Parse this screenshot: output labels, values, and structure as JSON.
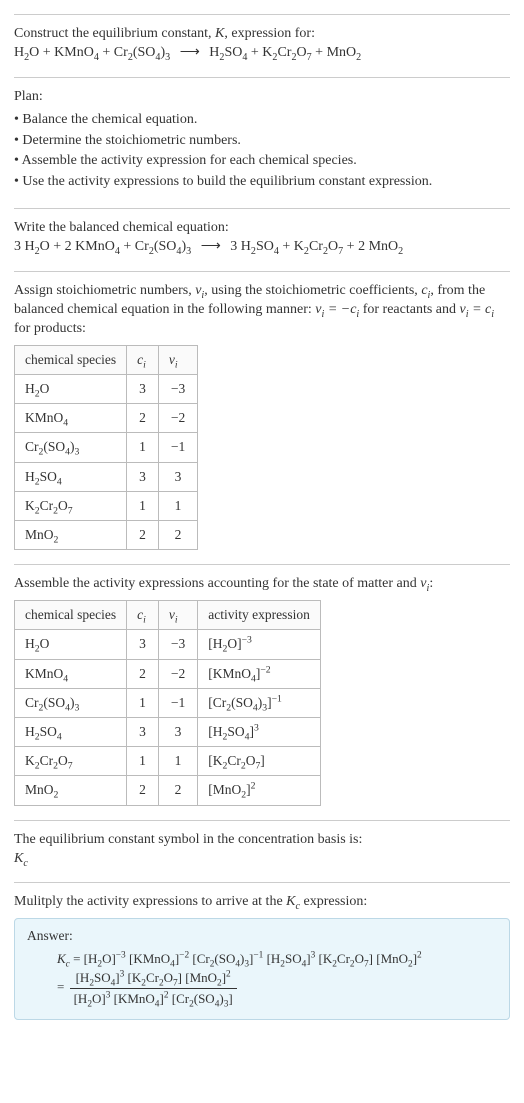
{
  "intro": {
    "line1_pre": "Construct the equilibrium constant, ",
    "line1_K": "K",
    "line1_post": ", expression for:"
  },
  "eq1": {
    "lhs": [
      {
        "s": "H",
        "sub": "2"
      },
      {
        "s": "O + KMnO"
      },
      {
        "sub": "4"
      },
      {
        "s": " + Cr"
      },
      {
        "sub": "2"
      },
      {
        "s": "(SO"
      },
      {
        "sub": "4"
      },
      {
        "s": ")"
      },
      {
        "sub": "3"
      }
    ],
    "rhs": [
      {
        "s": "H",
        "sub": "2"
      },
      {
        "s": "SO"
      },
      {
        "sub": "4"
      },
      {
        "s": " + K"
      },
      {
        "sub": "2"
      },
      {
        "s": "Cr"
      },
      {
        "sub": "2"
      },
      {
        "s": "O"
      },
      {
        "sub": "7"
      },
      {
        "s": " + MnO"
      },
      {
        "sub": "2"
      }
    ]
  },
  "plan": {
    "title": "Plan:",
    "items": [
      "• Balance the chemical equation.",
      "• Determine the stoichiometric numbers.",
      "• Assemble the activity expression for each chemical species.",
      "• Use the activity expressions to build the equilibrium constant expression."
    ]
  },
  "balanced": {
    "title": "Write the balanced chemical equation:",
    "lhs": [
      {
        "s": "3 H",
        "sub": "2"
      },
      {
        "s": "O + 2 KMnO"
      },
      {
        "sub": "4"
      },
      {
        "s": " + Cr"
      },
      {
        "sub": "2"
      },
      {
        "s": "(SO"
      },
      {
        "sub": "4"
      },
      {
        "s": ")"
      },
      {
        "sub": "3"
      }
    ],
    "rhs": [
      {
        "s": "3 H",
        "sub": "2"
      },
      {
        "s": "SO"
      },
      {
        "sub": "4"
      },
      {
        "s": " + K"
      },
      {
        "sub": "2"
      },
      {
        "s": "Cr"
      },
      {
        "sub": "2"
      },
      {
        "s": "O"
      },
      {
        "sub": "7"
      },
      {
        "s": " + 2 MnO"
      },
      {
        "sub": "2"
      }
    ]
  },
  "stoich_text": {
    "p1": "Assign stoichiometric numbers, ",
    "vi": "ν",
    "visub": "i",
    "p2": ", using the stoichiometric coefficients, ",
    "ci": "c",
    "cisub": "i",
    "p3": ", from the balanced chemical equation in the following manner: ",
    "eq1": "ν",
    "eq1sub": "i",
    "eq1b": " = −c",
    "eq1bsub": "i",
    "p4": " for reactants and ",
    "eq2": "ν",
    "eq2sub": "i",
    "eq2b": " = c",
    "eq2bsub": "i",
    "p5": " for products:"
  },
  "table1": {
    "headers": [
      "chemical species",
      "c_i",
      "ν_i"
    ],
    "rows": [
      {
        "species": [
          {
            "s": "H",
            "sub": "2"
          },
          {
            "s": "O"
          }
        ],
        "c": "3",
        "v": "−3"
      },
      {
        "species": [
          {
            "s": "KMnO",
            "sub": "4"
          }
        ],
        "c": "2",
        "v": "−2"
      },
      {
        "species": [
          {
            "s": "Cr",
            "sub": "2"
          },
          {
            "s": "(SO",
            "sub": "4"
          },
          {
            "s": ")",
            "sub": "3"
          }
        ],
        "c": "1",
        "v": "−1"
      },
      {
        "species": [
          {
            "s": "H",
            "sub": "2"
          },
          {
            "s": "SO",
            "sub": "4"
          }
        ],
        "c": "3",
        "v": "3"
      },
      {
        "species": [
          {
            "s": "K",
            "sub": "2"
          },
          {
            "s": "Cr",
            "sub": "2"
          },
          {
            "s": "O",
            "sub": "7"
          }
        ],
        "c": "1",
        "v": "1"
      },
      {
        "species": [
          {
            "s": "MnO",
            "sub": "2"
          }
        ],
        "c": "2",
        "v": "2"
      }
    ]
  },
  "assemble_text": {
    "p1": "Assemble the activity expressions accounting for the state of matter and ",
    "vi": "ν",
    "visub": "i",
    "p2": ":"
  },
  "table2": {
    "headers": [
      "chemical species",
      "c_i",
      "ν_i",
      "activity expression"
    ],
    "rows": [
      {
        "species": [
          {
            "s": "H",
            "sub": "2"
          },
          {
            "s": "O"
          }
        ],
        "c": "3",
        "v": "−3",
        "act": [
          {
            "s": "[H",
            "sub": "2"
          },
          {
            "s": "O]",
            "sup": "−3"
          }
        ]
      },
      {
        "species": [
          {
            "s": "KMnO",
            "sub": "4"
          }
        ],
        "c": "2",
        "v": "−2",
        "act": [
          {
            "s": "[KMnO",
            "sub": "4"
          },
          {
            "s": "]",
            "sup": "−2"
          }
        ]
      },
      {
        "species": [
          {
            "s": "Cr",
            "sub": "2"
          },
          {
            "s": "(SO",
            "sub": "4"
          },
          {
            "s": ")",
            "sub": "3"
          }
        ],
        "c": "1",
        "v": "−1",
        "act": [
          {
            "s": "[Cr",
            "sub": "2"
          },
          {
            "s": "(SO",
            "sub": "4"
          },
          {
            "s": ")",
            "sub": "3"
          },
          {
            "s": "]",
            "sup": "−1"
          }
        ]
      },
      {
        "species": [
          {
            "s": "H",
            "sub": "2"
          },
          {
            "s": "SO",
            "sub": "4"
          }
        ],
        "c": "3",
        "v": "3",
        "act": [
          {
            "s": "[H",
            "sub": "2"
          },
          {
            "s": "SO",
            "sub": "4"
          },
          {
            "s": "]",
            "sup": "3"
          }
        ]
      },
      {
        "species": [
          {
            "s": "K",
            "sub": "2"
          },
          {
            "s": "Cr",
            "sub": "2"
          },
          {
            "s": "O",
            "sub": "7"
          }
        ],
        "c": "1",
        "v": "1",
        "act": [
          {
            "s": "[K",
            "sub": "2"
          },
          {
            "s": "Cr",
            "sub": "2"
          },
          {
            "s": "O",
            "sub": "7"
          },
          {
            "s": "]"
          }
        ]
      },
      {
        "species": [
          {
            "s": "MnO",
            "sub": "2"
          }
        ],
        "c": "2",
        "v": "2",
        "act": [
          {
            "s": "[MnO",
            "sub": "2"
          },
          {
            "s": "]",
            "sup": "2"
          }
        ]
      }
    ]
  },
  "symbol_text": "The equilibrium constant symbol in the concentration basis is:",
  "multiply_text": {
    "p1": "Mulitply the activity expressions to arrive at the ",
    "kc": "K",
    "kcsub": "c",
    "p2": " expression:"
  },
  "answer": {
    "label": "Answer:",
    "line1": [
      {
        "s": "K",
        "sub": "c",
        "it": true
      },
      {
        "s": " = [H",
        "sub": "2"
      },
      {
        "s": "O]",
        "sup": "−3"
      },
      {
        "s": " [KMnO",
        "sub": "4"
      },
      {
        "s": "]",
        "sup": "−2"
      },
      {
        "s": " [Cr",
        "sub": "2"
      },
      {
        "s": "(SO",
        "sub": "4"
      },
      {
        "s": ")",
        "sub": "3"
      },
      {
        "s": "]",
        "sup": "−1"
      },
      {
        "s": " [H",
        "sub": "2"
      },
      {
        "s": "SO",
        "sub": "4"
      },
      {
        "s": "]",
        "sup": "3"
      },
      {
        "s": " [K",
        "sub": "2"
      },
      {
        "s": "Cr",
        "sub": "2"
      },
      {
        "s": "O",
        "sub": "7"
      },
      {
        "s": "] [MnO",
        "sub": "2"
      },
      {
        "s": "]",
        "sup": "2"
      }
    ],
    "frac_num": [
      {
        "s": "[H",
        "sub": "2"
      },
      {
        "s": "SO",
        "sub": "4"
      },
      {
        "s": "]",
        "sup": "3"
      },
      {
        "s": " [K",
        "sub": "2"
      },
      {
        "s": "Cr",
        "sub": "2"
      },
      {
        "s": "O",
        "sub": "7"
      },
      {
        "s": "] [MnO",
        "sub": "2"
      },
      {
        "s": "]",
        "sup": "2"
      }
    ],
    "frac_den": [
      {
        "s": "[H",
        "sub": "2"
      },
      {
        "s": "O]",
        "sup": "3"
      },
      {
        "s": " [KMnO",
        "sub": "4"
      },
      {
        "s": "]",
        "sup": "2"
      },
      {
        "s": " [Cr",
        "sub": "2"
      },
      {
        "s": "(SO",
        "sub": "4"
      },
      {
        "s": ")",
        "sub": "3"
      },
      {
        "s": "]"
      }
    ]
  },
  "arrow": "⟶"
}
